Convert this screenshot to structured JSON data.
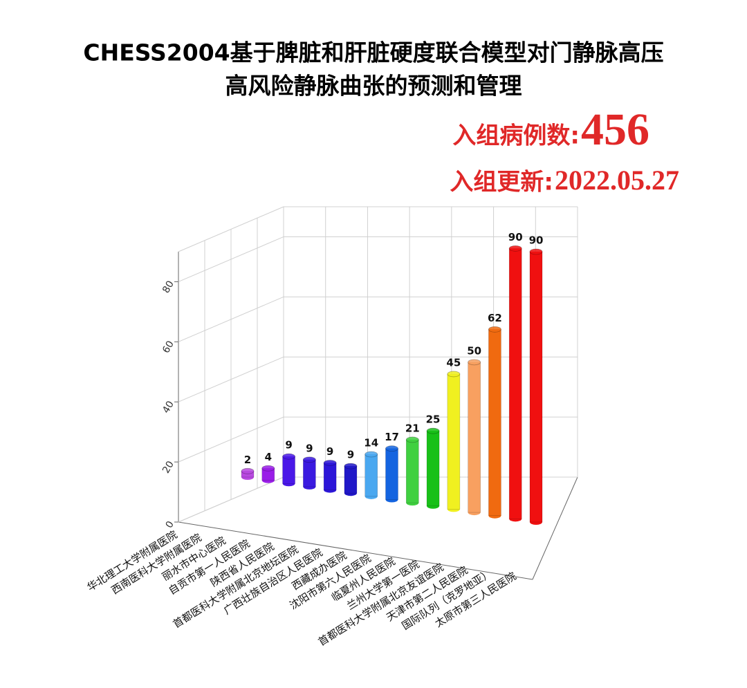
{
  "chart_data": {
    "type": "bar3d",
    "title": [
      "CHESS2004基于脾脏和肝脏硬度联合模型对门静脉高压",
      "高风险静脉曲张的预测和管理"
    ],
    "annotations": [
      {
        "label": "入组病例数:",
        "text": "456"
      },
      {
        "label": "入组更新:",
        "text": "2022.05.27"
      }
    ],
    "categories": [
      "华北理工大学附属医院",
      "西南医科大学附属医院",
      "丽水市中心医院",
      "自贡市第一人民医院",
      "陕西省人民医院",
      "首都医科大学附属北京地坛医院",
      "广西壮族自治区人民医院",
      "西藏成办医院",
      "沈阳市第六人民医院",
      "临夏州人民医院",
      "兰州大学第一医院",
      "首都医科大学附属北京友谊医院",
      "天津市第二人民医院",
      "国际队列（克罗地亚）",
      "太原市第三人民医院"
    ],
    "values": [
      2,
      4,
      9,
      9,
      9,
      9,
      14,
      17,
      21,
      25,
      45,
      50,
      62,
      90,
      90
    ],
    "colors": [
      "#b84ae0",
      "#9a1ee8",
      "#4a18e8",
      "#3a1ae0",
      "#2c16d8",
      "#2018c8",
      "#4aa8f0",
      "#1464e0",
      "#40d040",
      "#18c018",
      "#f0f020",
      "#f8a060",
      "#f06a10",
      "#f01010",
      "#f01010"
    ],
    "ylim": [
      0,
      90
    ],
    "yticks": [
      0,
      20,
      40,
      60,
      80
    ],
    "grid": true
  }
}
